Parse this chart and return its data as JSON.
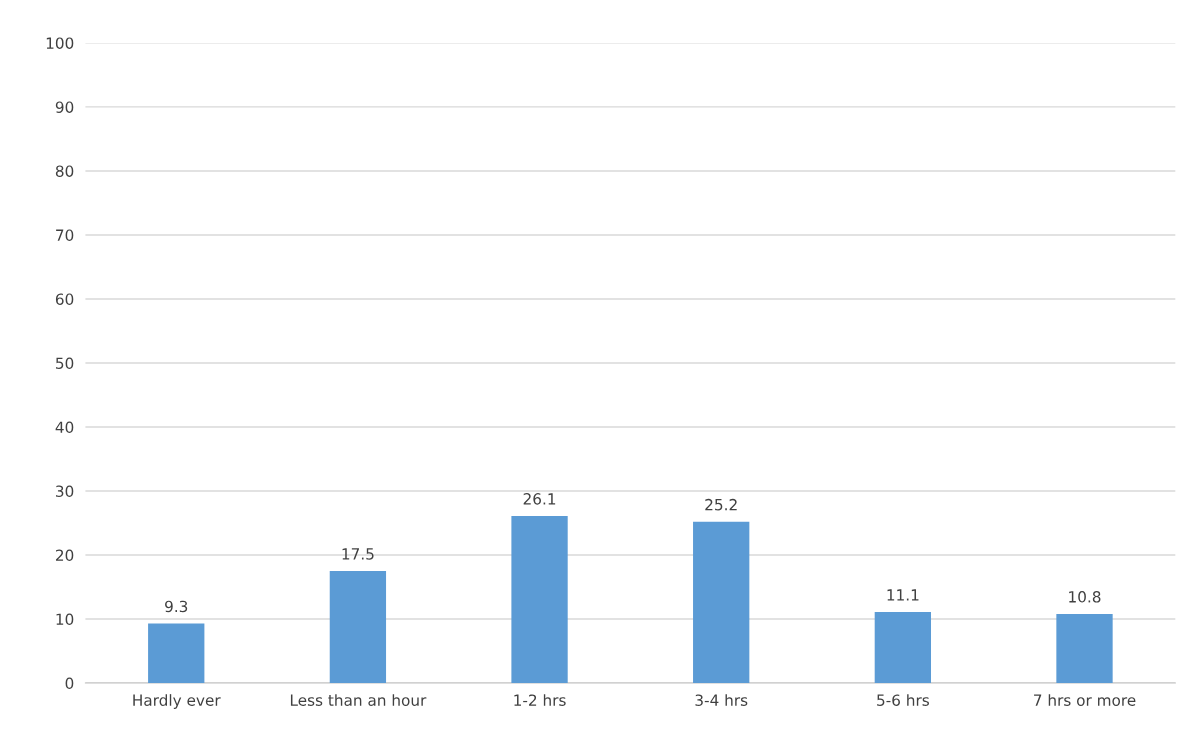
{
  "chart_data": {
    "type": "bar",
    "categories": [
      "Hardly ever",
      "Less than an hour",
      "1-2 hrs",
      "3-4 hrs",
      "5-6 hrs",
      "7 hrs or more"
    ],
    "values": [
      9.3,
      17.5,
      26.1,
      25.2,
      11.1,
      10.8
    ],
    "color": "#5b9bd5",
    "ylim": [
      0,
      100
    ],
    "yticks": [
      0,
      10,
      20,
      30,
      40,
      50,
      60,
      70,
      80,
      90,
      100
    ],
    "grid": "y",
    "data_labels": true
  }
}
